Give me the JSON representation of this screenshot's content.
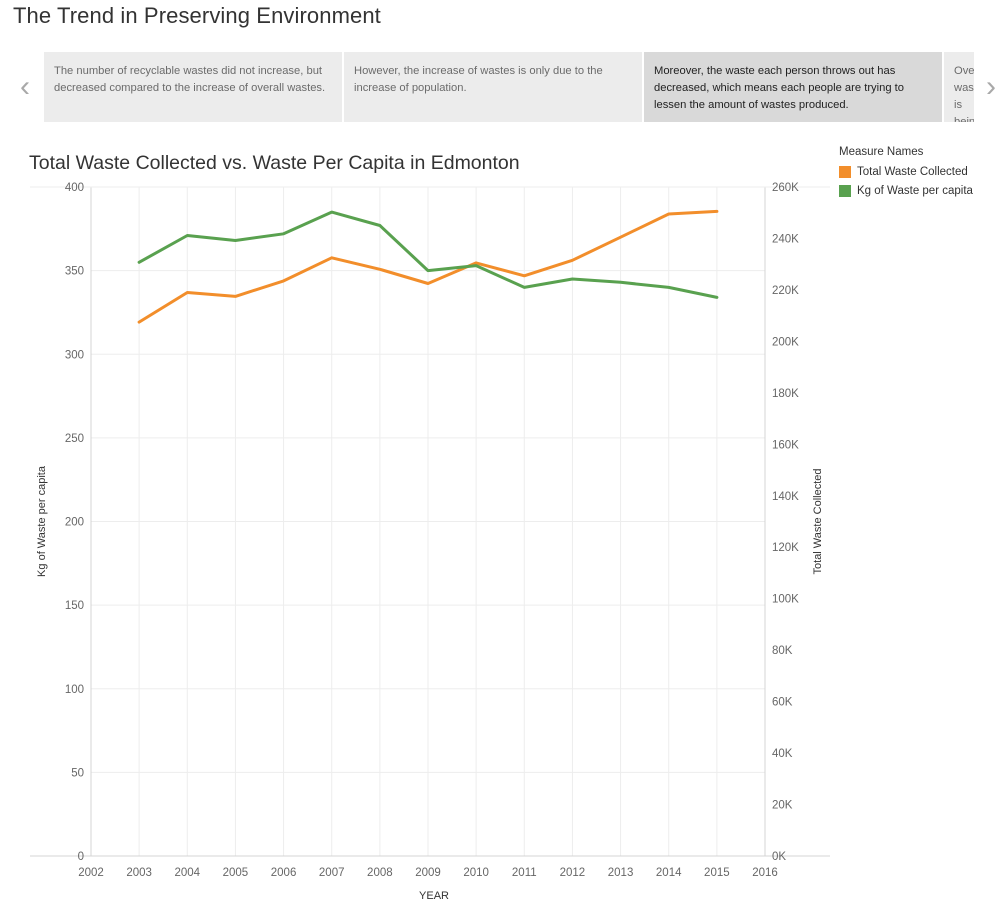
{
  "story": {
    "title": "The Trend in Preserving Environment",
    "points": [
      {
        "text": "The number of recyclable wastes did not increase, but decreased compared to the increase of overall wastes.",
        "active": false
      },
      {
        "text": "However, the increase of wastes is only due to the increase of population.",
        "active": false
      },
      {
        "text": "Moreover, the waste each person throws out has decreased, which means each people are trying to lessen the amount of wastes produced.",
        "active": true
      },
      {
        "text": "Overall, waste is being preserved",
        "active": false
      }
    ],
    "nav_left_icon": "chevron-left-icon",
    "nav_right_icon": "chevron-right-icon"
  },
  "legend": {
    "title": "Measure Names",
    "items": [
      {
        "label": "Total Waste Collected",
        "color": "#f28e2b"
      },
      {
        "label": "Kg of Waste per capita",
        "color": "#59a14f"
      }
    ]
  },
  "chart_data": {
    "type": "line",
    "title": "Total Waste Collected vs. Waste Per Capita in Edmonton",
    "xlabel": "YEAR",
    "ylabel_left": "Kg of Waste per capita",
    "ylabel_right": "Total Waste Collected",
    "x_ticks": [
      "2002",
      "2003",
      "2004",
      "2005",
      "2006",
      "2007",
      "2008",
      "2009",
      "2010",
      "2011",
      "2012",
      "2013",
      "2014",
      "2015",
      "2016"
    ],
    "xlim": [
      2002,
      2016
    ],
    "ylim_left": [
      0,
      400
    ],
    "ylim_right": [
      0,
      260000
    ],
    "left_ticks": [
      "0",
      "50",
      "100",
      "150",
      "200",
      "250",
      "300",
      "350",
      "400"
    ],
    "right_ticks": [
      "0K",
      "20K",
      "40K",
      "60K",
      "80K",
      "100K",
      "120K",
      "140K",
      "160K",
      "180K",
      "200K",
      "220K",
      "240K",
      "260K"
    ],
    "grid": true,
    "series": [
      {
        "name": "Total Waste Collected",
        "axis": "right",
        "color": "#f28e2b",
        "x": [
          2003,
          2004,
          2005,
          2006,
          2007,
          2008,
          2009,
          2010,
          2011,
          2012,
          2013,
          2014,
          2015
        ],
        "values": [
          207500,
          219000,
          217500,
          223500,
          232500,
          228000,
          222500,
          230500,
          225500,
          231500,
          240500,
          249500,
          250500
        ]
      },
      {
        "name": "Kg of Waste per capita",
        "axis": "left",
        "color": "#59a14f",
        "x": [
          2003,
          2004,
          2005,
          2006,
          2007,
          2008,
          2009,
          2010,
          2011,
          2012,
          2013,
          2014,
          2015
        ],
        "values": [
          355,
          371,
          368,
          372,
          385,
          377,
          350,
          353,
          340,
          345,
          343,
          340,
          334
        ]
      }
    ]
  }
}
